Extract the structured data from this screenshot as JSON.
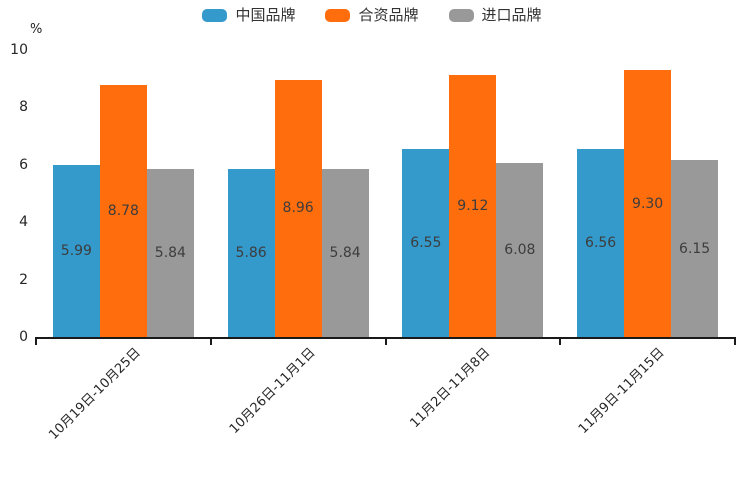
{
  "chart_data": {
    "type": "bar",
    "title": "",
    "unit_label": "%",
    "categories": [
      "10月19日-10月25日",
      "10月26日-11月1日",
      "11月2日-11月8日",
      "11月9日-11月15日"
    ],
    "series": [
      {
        "name": "中国品牌",
        "color": "#3499CB",
        "values": [
          5.99,
          5.86,
          6.55,
          6.56
        ]
      },
      {
        "name": "合资品牌",
        "color": "#FF6D0D",
        "values": [
          8.78,
          8.96,
          9.12,
          9.3
        ]
      },
      {
        "name": "进口品牌",
        "color": "#999999",
        "values": [
          5.84,
          5.84,
          6.08,
          6.15
        ]
      }
    ],
    "ylim": [
      0,
      10
    ],
    "yticks": [
      0,
      2,
      4,
      6,
      8,
      10
    ],
    "legend_position": "top-center",
    "grid": false,
    "value_labels": "inside-center",
    "value_label_decimals": 2
  },
  "colors": {
    "axis": "#1a1a1a",
    "tick_text": "#262626",
    "bar_label_text": "#3d3d3d",
    "legend_text": "#333333",
    "background": "#ffffff"
  }
}
